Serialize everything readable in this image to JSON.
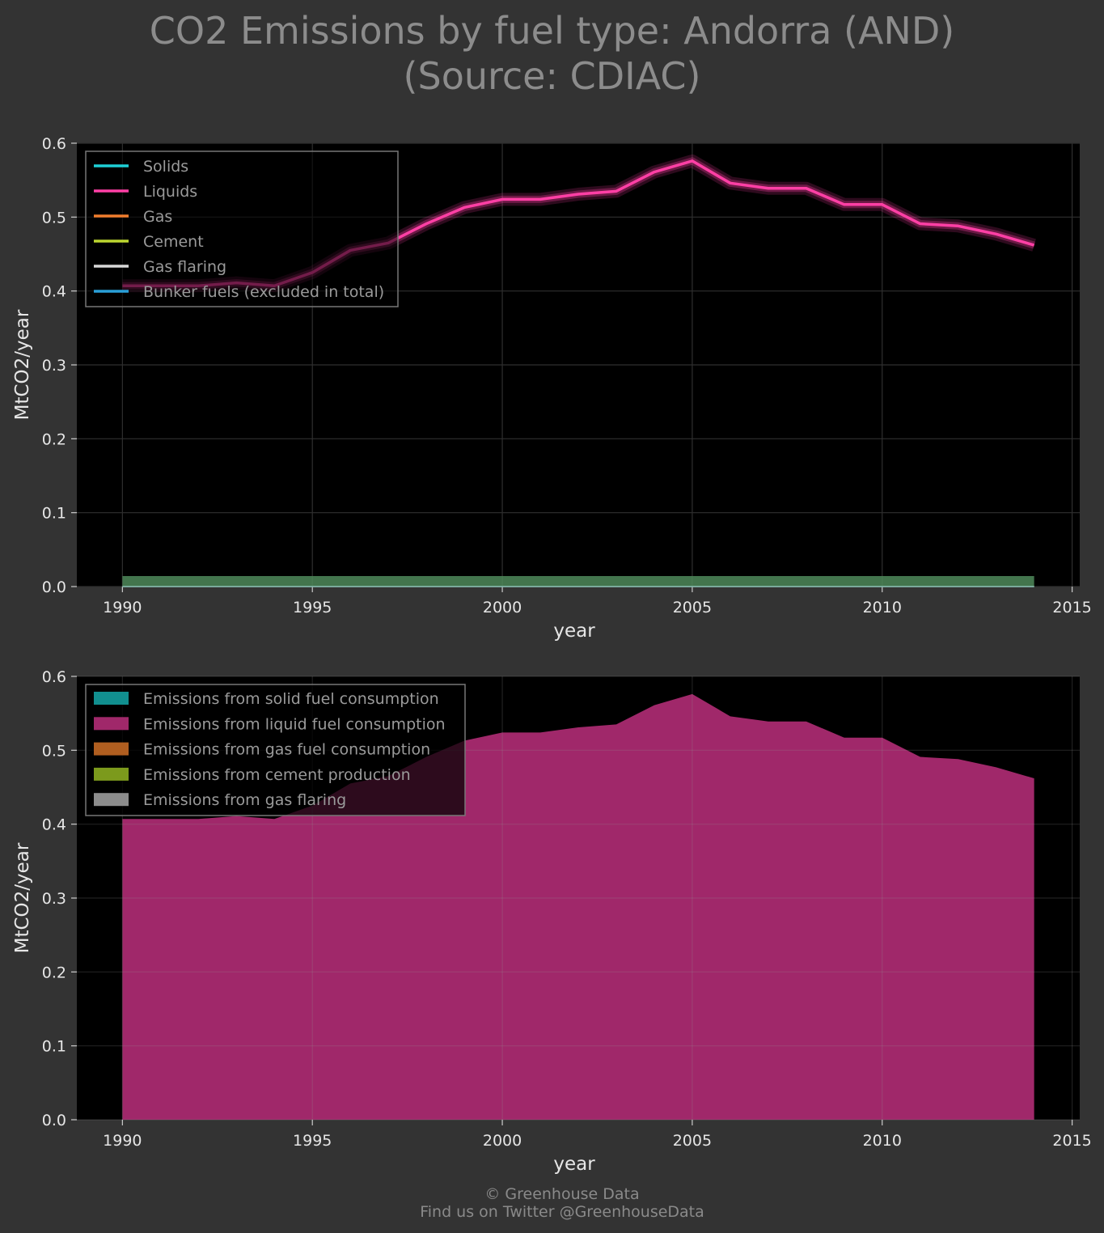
{
  "title_line1": "CO2 Emissions by fuel type: Andorra (AND)",
  "title_line2": "(Source: CDIAC)",
  "footer_line1": "© Greenhouse Data",
  "footer_line2": "Find us on Twitter @GreenhouseData",
  "colors": {
    "background": "#333333",
    "plot_bg": "#000000",
    "solids": "#1ecfd6",
    "liquids": "#ff3fa5",
    "gas": "#f07d2d",
    "cement": "#bcd630",
    "flaring": "#d8d8d8",
    "bunker": "#2a9fd8",
    "area_solids": "#118f8f",
    "area_liquids": "#a0286a",
    "area_gas": "#b05e20",
    "area_cement": "#7c9a1c",
    "area_flaring": "#8c8c8c"
  },
  "chart_data": [
    {
      "type": "line",
      "xlabel": "year",
      "ylabel": "MtCO2/year",
      "xlim": [
        1988.8,
        1315.0
      ],
      "xlim_note": "",
      "ylim": [
        0,
        0.6
      ],
      "xticks": [
        "1990",
        "1995",
        "2000",
        "2005",
        "2010",
        "2015"
      ],
      "yticks": [
        "0.0",
        "0.1",
        "0.2",
        "0.3",
        "0.4",
        "0.5",
        "0.6"
      ],
      "grid": true,
      "legend_position": "top-left",
      "x": [
        1990,
        1991,
        1992,
        1993,
        1994,
        1995,
        1996,
        1997,
        1998,
        1999,
        2000,
        2001,
        2002,
        2003,
        2004,
        2005,
        2006,
        2007,
        2008,
        2009,
        2010,
        2011,
        2012,
        2013,
        2014
      ],
      "series": [
        {
          "name": "Solids",
          "values": [
            0,
            0,
            0,
            0,
            0,
            0,
            0,
            0,
            0,
            0,
            0,
            0,
            0,
            0,
            0,
            0,
            0,
            0,
            0,
            0,
            0,
            0,
            0,
            0,
            0
          ]
        },
        {
          "name": "Liquids",
          "values": [
            0.407,
            0.407,
            0.407,
            0.411,
            0.407,
            0.425,
            0.455,
            0.465,
            0.491,
            0.513,
            0.524,
            0.524,
            0.531,
            0.535,
            0.561,
            0.576,
            0.546,
            0.539,
            0.539,
            0.517,
            0.517,
            0.491,
            0.488,
            0.477,
            0.462
          ]
        },
        {
          "name": "Gas",
          "values": [
            0,
            0,
            0,
            0,
            0,
            0,
            0,
            0,
            0,
            0,
            0,
            0,
            0,
            0,
            0,
            0,
            0,
            0,
            0,
            0,
            0,
            0,
            0,
            0,
            0
          ]
        },
        {
          "name": "Cement",
          "values": [
            0,
            0,
            0,
            0,
            0,
            0,
            0,
            0,
            0,
            0,
            0,
            0,
            0,
            0,
            0,
            0,
            0,
            0,
            0,
            0,
            0,
            0,
            0,
            0,
            0
          ]
        },
        {
          "name": "Gas flaring",
          "values": [
            0,
            0,
            0,
            0,
            0,
            0,
            0,
            0,
            0,
            0,
            0,
            0,
            0,
            0,
            0,
            0,
            0,
            0,
            0,
            0,
            0,
            0,
            0,
            0,
            0
          ]
        },
        {
          "name": "Bunker fuels (excluded in total)",
          "values": [
            0,
            0,
            0,
            0,
            0,
            0,
            0,
            0,
            0,
            0,
            0,
            0,
            0,
            0,
            0,
            0,
            0,
            0,
            0,
            0,
            0,
            0,
            0,
            0,
            0
          ]
        }
      ]
    },
    {
      "type": "area",
      "xlabel": "year",
      "ylabel": "MtCO2/year",
      "ylim": [
        0,
        0.6
      ],
      "xticks": [
        "1990",
        "1995",
        "2000",
        "2005",
        "2010",
        "2015"
      ],
      "yticks": [
        "0.0",
        "0.1",
        "0.2",
        "0.3",
        "0.4",
        "0.5",
        "0.6"
      ],
      "grid": true,
      "legend_position": "top-left",
      "x": [
        1990,
        1991,
        1992,
        1993,
        1994,
        1995,
        1996,
        1997,
        1998,
        1999,
        2000,
        2001,
        2002,
        2003,
        2004,
        2005,
        2006,
        2007,
        2008,
        2009,
        2010,
        2011,
        2012,
        2013,
        2014
      ],
      "series": [
        {
          "name": "Emissions from solid fuel consumption",
          "values": [
            0,
            0,
            0,
            0,
            0,
            0,
            0,
            0,
            0,
            0,
            0,
            0,
            0,
            0,
            0,
            0,
            0,
            0,
            0,
            0,
            0,
            0,
            0,
            0,
            0
          ]
        },
        {
          "name": "Emissions from liquid fuel consumption",
          "values": [
            0.407,
            0.407,
            0.407,
            0.411,
            0.407,
            0.425,
            0.455,
            0.465,
            0.491,
            0.513,
            0.524,
            0.524,
            0.531,
            0.535,
            0.561,
            0.576,
            0.546,
            0.539,
            0.539,
            0.517,
            0.517,
            0.491,
            0.488,
            0.477,
            0.462
          ]
        },
        {
          "name": "Emissions from gas fuel consumption",
          "values": [
            0,
            0,
            0,
            0,
            0,
            0,
            0,
            0,
            0,
            0,
            0,
            0,
            0,
            0,
            0,
            0,
            0,
            0,
            0,
            0,
            0,
            0,
            0,
            0,
            0
          ]
        },
        {
          "name": "Emissions from cement production",
          "values": [
            0,
            0,
            0,
            0,
            0,
            0,
            0,
            0,
            0,
            0,
            0,
            0,
            0,
            0,
            0,
            0,
            0,
            0,
            0,
            0,
            0,
            0,
            0,
            0,
            0
          ]
        },
        {
          "name": "Emissions from gas flaring",
          "values": [
            0,
            0,
            0,
            0,
            0,
            0,
            0,
            0,
            0,
            0,
            0,
            0,
            0,
            0,
            0,
            0,
            0,
            0,
            0,
            0,
            0,
            0,
            0,
            0,
            0
          ]
        }
      ]
    }
  ]
}
